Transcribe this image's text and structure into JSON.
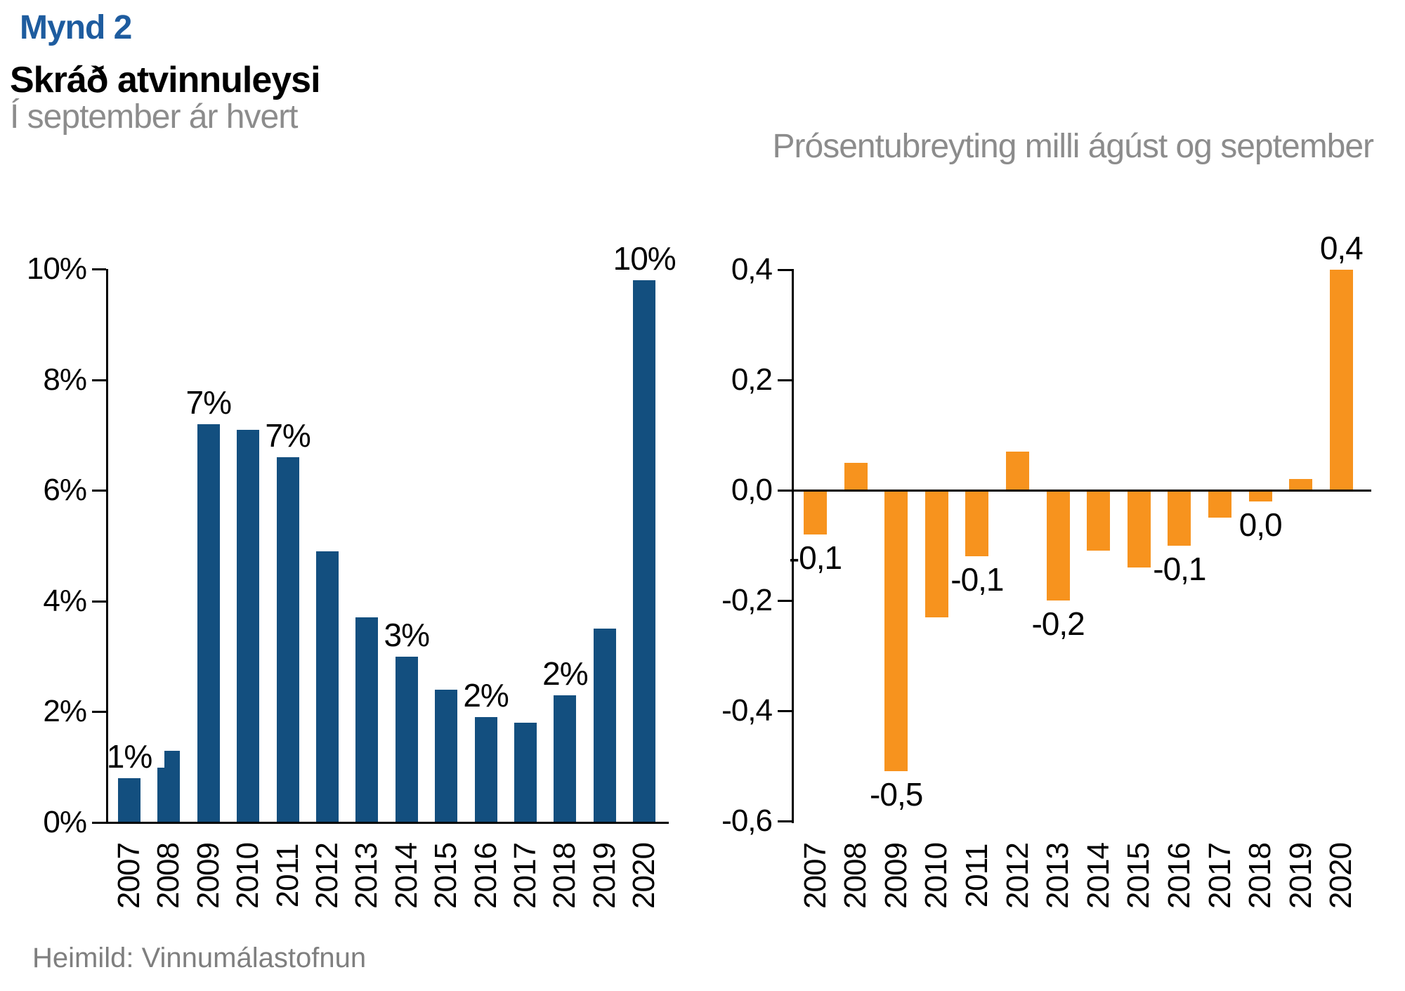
{
  "header": {
    "figure_label": "Mynd 2",
    "title": "Skráð atvinnuleysi"
  },
  "footer": {
    "source": "Heimild: Vinnumálastofnun"
  },
  "colors": {
    "figure_label_blue": "#1E5C9F",
    "bar_blue": "#134F7F",
    "bar_orange": "#F7931E",
    "subtitle_gray": "#8C8C8C",
    "source_gray": "#7F7F7F",
    "axis_black": "#000000"
  },
  "chart_data": [
    {
      "id": "september-unemployment",
      "type": "bar",
      "title": "Í september ár hvert",
      "categories": [
        "2007",
        "2008",
        "2009",
        "2010",
        "2011",
        "2012",
        "2013",
        "2014",
        "2015",
        "2016",
        "2017",
        "2018",
        "2019",
        "2020"
      ],
      "values": [
        0.8,
        1.3,
        7.2,
        7.1,
        6.6,
        4.9,
        3.7,
        3.0,
        2.4,
        1.9,
        1.8,
        2.3,
        3.5,
        9.8
      ],
      "bar_labels": [
        "1%",
        null,
        "7%",
        null,
        "7%",
        null,
        null,
        "3%",
        null,
        "2%",
        null,
        "2%",
        null,
        "10%"
      ],
      "yticks": [
        0,
        2,
        4,
        6,
        8,
        10
      ],
      "ytick_labels": [
        "0%",
        "2%",
        "4%",
        "6%",
        "8%",
        "10%"
      ],
      "ylim": [
        0,
        10
      ],
      "grid": false,
      "legend": false,
      "bar_color": "#134F7F",
      "overlap_step": {
        "year": "2008",
        "secondary_value": 1.0
      }
    },
    {
      "id": "aug-sep-change",
      "type": "bar",
      "title": "Prósentubreyting milli ágúst og september",
      "categories": [
        "2007",
        "2008",
        "2009",
        "2010",
        "2011",
        "2012",
        "2013",
        "2014",
        "2015",
        "2016",
        "2017",
        "2018",
        "2019",
        "2020"
      ],
      "values": [
        -0.08,
        0.05,
        -0.51,
        -0.23,
        -0.12,
        0.07,
        -0.2,
        -0.11,
        -0.14,
        -0.1,
        -0.05,
        -0.02,
        0.02,
        0.4
      ],
      "bar_labels": [
        "-0,1",
        null,
        "-0,5",
        null,
        "-0,1",
        null,
        "-0,2",
        null,
        null,
        "-0,1",
        null,
        "0,0",
        null,
        "0,4"
      ],
      "yticks": [
        0.4,
        0.2,
        0.0,
        -0.2,
        -0.4,
        -0.6
      ],
      "ytick_labels": [
        "0,4",
        "0,2",
        "0,0",
        "-0,2",
        "-0,4",
        "-0,6"
      ],
      "ylim": [
        -0.6,
        0.4
      ],
      "grid": false,
      "legend": false,
      "bar_color": "#F7931E"
    }
  ]
}
